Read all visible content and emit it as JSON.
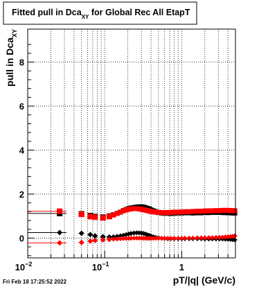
{
  "title_box": {
    "main": "Fitted pull in Dca",
    "sub": "XY",
    "rest": " for Global Rec All EtapT"
  },
  "footer_timestamp": "Fri Feb 18 17:25:52 2022",
  "chart_data": {
    "type": "scatter",
    "x_scale": "log",
    "xlim": [
      0.01,
      5.0
    ],
    "ylim": [
      -0.9,
      9.5
    ],
    "grid": true,
    "xlabel": "pT/|q| (GeV/c)",
    "ylabel": {
      "main": "pull in Dca",
      "sub": "XY"
    },
    "x_ticks": [
      {
        "value": 0.01,
        "base": "10",
        "exp": "−2"
      },
      {
        "value": 0.1,
        "base": "10",
        "exp": "−1"
      },
      {
        "value": 1,
        "base": "1",
        "exp": ""
      }
    ],
    "y_ticks": [
      "0",
      "2",
      "4",
      "6",
      "8"
    ],
    "x_points": [
      0.026,
      0.05,
      0.065,
      0.075,
      0.095,
      0.115,
      0.13,
      0.145,
      0.16,
      0.175,
      0.19,
      0.205,
      0.22,
      0.24,
      0.26,
      0.28,
      0.3,
      0.32,
      0.34,
      0.36,
      0.38,
      0.4,
      0.43,
      0.46,
      0.5,
      0.55,
      0.6,
      0.66,
      0.72,
      0.8,
      0.9,
      1.0,
      1.1,
      1.25,
      1.4,
      1.6,
      1.8,
      2.0,
      2.25,
      2.5,
      2.8,
      3.1,
      3.4,
      3.7,
      4.0,
      4.3,
      4.6,
      4.9
    ],
    "series": [
      {
        "color": "#000000",
        "marker": "square",
        "values": [
          1.12,
          1.1,
          1.02,
          0.98,
          0.95,
          1.0,
          1.06,
          1.12,
          1.18,
          1.25,
          1.3,
          1.34,
          1.37,
          1.39,
          1.41,
          1.42,
          1.42,
          1.41,
          1.38,
          1.35,
          1.32,
          1.28,
          1.24,
          1.2,
          1.16,
          1.14,
          1.13,
          1.13,
          1.12,
          1.13,
          1.14,
          1.14,
          1.15,
          1.15,
          1.14,
          1.15,
          1.15,
          1.16,
          1.16,
          1.17,
          1.17,
          1.17,
          1.16,
          1.16,
          1.15,
          1.15,
          1.14,
          1.14
        ]
      },
      {
        "color": "#ff0000",
        "marker": "square",
        "values": [
          1.22,
          1.08,
          0.98,
          0.95,
          0.92,
          0.98,
          1.05,
          1.12,
          1.18,
          1.24,
          1.28,
          1.31,
          1.33,
          1.34,
          1.34,
          1.33,
          1.31,
          1.29,
          1.27,
          1.25,
          1.23,
          1.21,
          1.19,
          1.18,
          1.17,
          1.16,
          1.16,
          1.16,
          1.17,
          1.18,
          1.18,
          1.19,
          1.2,
          1.2,
          1.21,
          1.22,
          1.22,
          1.23,
          1.24,
          1.24,
          1.25,
          1.25,
          1.26,
          1.26,
          1.26,
          1.25,
          1.25,
          1.24
        ]
      },
      {
        "color": "#000000",
        "marker": "diamond",
        "values": [
          0.25,
          0.22,
          0.16,
          0.1,
          0.06,
          0.05,
          0.06,
          0.08,
          0.1,
          0.13,
          0.16,
          0.19,
          0.21,
          0.23,
          0.24,
          0.24,
          0.23,
          0.21,
          0.18,
          0.15,
          0.12,
          0.09,
          0.06,
          0.03,
          0.01,
          -0.01,
          -0.02,
          -0.03,
          -0.03,
          -0.03,
          -0.03,
          -0.03,
          -0.03,
          -0.03,
          -0.03,
          -0.03,
          -0.03,
          -0.04,
          -0.04,
          -0.04,
          -0.04,
          -0.04,
          -0.04,
          -0.05,
          -0.05,
          -0.06,
          -0.07,
          -0.08
        ]
      },
      {
        "color": "#ff0000",
        "marker": "diamond",
        "values": [
          -0.22,
          -0.2,
          -0.14,
          -0.11,
          -0.08,
          -0.06,
          -0.05,
          -0.04,
          -0.03,
          -0.02,
          -0.02,
          -0.01,
          -0.01,
          -0.0,
          0.0,
          0.0,
          -0.0,
          -0.01,
          -0.01,
          -0.01,
          -0.01,
          -0.01,
          -0.01,
          -0.01,
          -0.01,
          -0.01,
          -0.01,
          -0.01,
          -0.01,
          -0.01,
          -0.01,
          -0.01,
          -0.0,
          0.0,
          0.0,
          0.01,
          0.01,
          0.01,
          0.02,
          0.02,
          0.03,
          0.03,
          0.04,
          0.05,
          0.06,
          0.07,
          0.08,
          0.1
        ]
      }
    ]
  }
}
